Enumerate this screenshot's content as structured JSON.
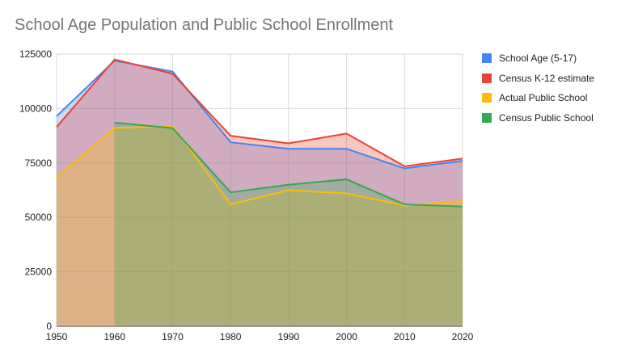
{
  "chart_data": {
    "type": "area",
    "title": "School Age Population and Public School Enrollment",
    "xlabel": "",
    "ylabel": "",
    "x": [
      1950,
      1960,
      1970,
      1980,
      1990,
      2000,
      2010,
      2020
    ],
    "ylim": [
      0,
      125000
    ],
    "yticks": [
      "0",
      "25000",
      "50000",
      "75000",
      "100000",
      "125000"
    ],
    "xticks": [
      "1950",
      "1960",
      "1970",
      "1980",
      "1990",
      "2000",
      "2010",
      "2020"
    ],
    "grid": true,
    "legend_position": "right",
    "series": [
      {
        "name": "School Age (5-17)",
        "color": "#4285F4",
        "values": [
          96500,
          122000,
          117000,
          84500,
          81500,
          81500,
          72500,
          76000
        ]
      },
      {
        "name": "Census K-12 estimate",
        "color": "#EA4335",
        "values": [
          91500,
          122500,
          116000,
          87500,
          84000,
          88500,
          73500,
          77000
        ]
      },
      {
        "name": "Actual Public School",
        "color": "#FBBC04",
        "values": [
          68500,
          91000,
          92000,
          56000,
          62500,
          61000,
          55500,
          57500
        ]
      },
      {
        "name": "Census Public School",
        "color": "#34A853",
        "values": [
          null,
          93500,
          91000,
          61500,
          65000,
          67500,
          56000,
          55000
        ]
      }
    ]
  }
}
